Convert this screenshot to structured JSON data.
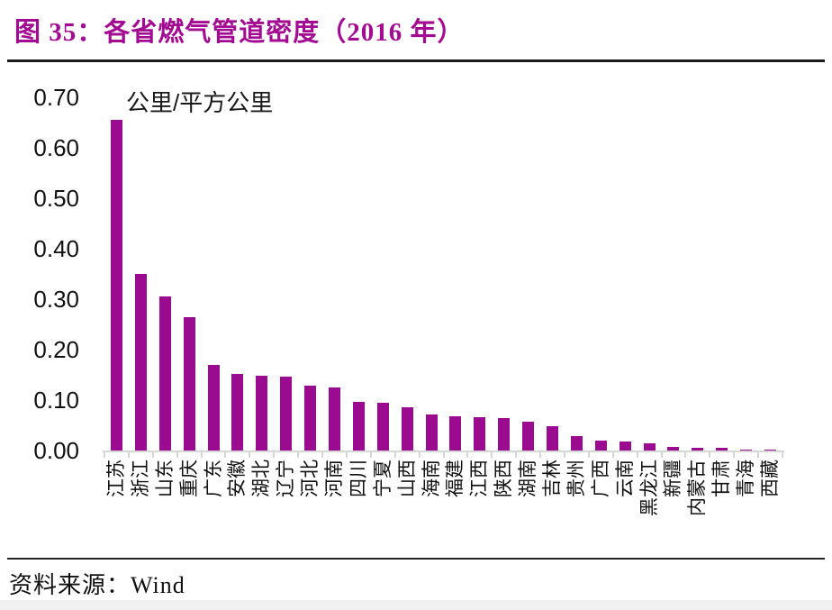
{
  "header": {
    "title": "图 35：各省燃气管道密度（2016 年）"
  },
  "footer": {
    "source_label": "资料来源：Wind"
  },
  "chart_data": {
    "type": "bar",
    "title": "各省燃气管道密度（2016 年）",
    "unit_label": "公里/平方公里",
    "categories": [
      "江苏",
      "浙江",
      "山东",
      "重庆",
      "广东",
      "安徽",
      "湖北",
      "辽宁",
      "河北",
      "河南",
      "四川",
      "宁夏",
      "山西",
      "海南",
      "福建",
      "江西",
      "陕西",
      "湖南",
      "吉林",
      "贵州",
      "广西",
      "云南",
      "黑龙江",
      "新疆",
      "内蒙古",
      "甘肃",
      "青海",
      "西藏"
    ],
    "values": [
      0.655,
      0.35,
      0.305,
      0.265,
      0.17,
      0.152,
      0.149,
      0.146,
      0.129,
      0.125,
      0.096,
      0.094,
      0.085,
      0.072,
      0.068,
      0.066,
      0.065,
      0.058,
      0.048,
      0.028,
      0.02,
      0.018,
      0.015,
      0.007,
      0.006,
      0.005,
      0.002,
      0.001
    ],
    "ylim": [
      0,
      0.7
    ],
    "ytick_step": 0.1,
    "yticks": [
      "0.00",
      "0.10",
      "0.20",
      "0.30",
      "0.40",
      "0.50",
      "0.60",
      "0.70"
    ],
    "xlabel": "",
    "ylabel": "公里/平方公里",
    "grid": "off",
    "legend": "none",
    "bar_color": "#9A0B90",
    "title_color": "#A40B93",
    "axis_color": "#d6d6d6"
  }
}
